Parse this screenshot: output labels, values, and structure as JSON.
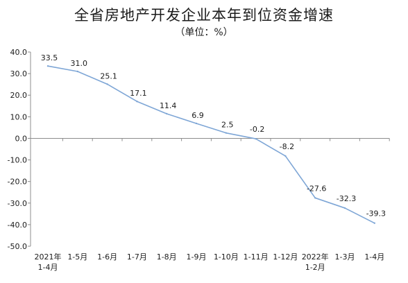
{
  "chart_data": {
    "type": "line",
    "title": "全省房地产开发企业本年到位资金增速",
    "subtitle": "（单位：%）",
    "xlabel": "",
    "ylabel": "",
    "ylim": [
      -50,
      40
    ],
    "yticks": [
      "40.0",
      "30.0",
      "20.0",
      "10.0",
      "0.0",
      "-10.0",
      "-20.0",
      "-30.0",
      "-40.0",
      "-50.0"
    ],
    "categories": [
      [
        "2021年",
        "1-4月"
      ],
      [
        "1-5月"
      ],
      [
        "1-6月"
      ],
      [
        "1-7月"
      ],
      [
        "1-8月"
      ],
      [
        "1-9月"
      ],
      [
        "1-10月"
      ],
      [
        "1-11月"
      ],
      [
        "1-12月"
      ],
      [
        "2022年",
        "1-2月"
      ],
      [
        "1-3月"
      ],
      [
        "1-4月"
      ]
    ],
    "values": [
      33.5,
      31.0,
      25.1,
      17.1,
      11.4,
      6.9,
      2.5,
      -0.2,
      -8.2,
      -27.6,
      -32.3,
      -39.3
    ],
    "value_labels": [
      "33.5",
      "31.0",
      "25.1",
      "17.1",
      "11.4",
      "6.9",
      "2.5",
      "-0.2",
      "-8.2",
      "-27.6",
      "-32.3",
      "-39.3"
    ],
    "grid": false,
    "legend": "none",
    "line_color": "#7ea6d6"
  }
}
